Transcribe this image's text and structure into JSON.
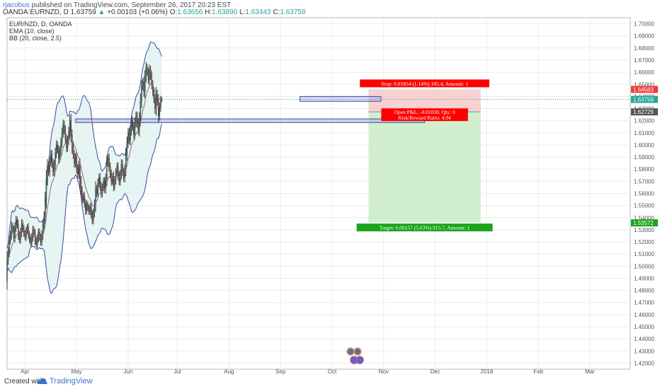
{
  "header": {
    "author": "rjacobus",
    "published_text": "published on TradingView.com, September 26, 2017 20:23 EST",
    "symbol": "OANDA:EURNZD, D",
    "last_price": "1.63759",
    "change": "+0.00103 (+0.06%)",
    "ohlc": {
      "o_label": "O:",
      "o": "1.63656",
      "h_label": "H:",
      "h": "1.63890",
      "l_label": "L:",
      "l": "1.63443",
      "c_label": "C:",
      "c": "1.63759"
    }
  },
  "legend": {
    "title": "EUR/NZD, D, OANDA",
    "indicators": [
      "EMA (10, close)",
      "BB (20, close, 2.5)"
    ]
  },
  "position_labels": {
    "stop": "Stop: 0.01854 (1.14%) 185.4, Amount: 1",
    "open_pnl": "Open P&L: -0.01030, Qty: 0",
    "risk_reward": "Risk/Reward Ratio: 4.94",
    "target": "Target: 0.09157 (5.63%) 915.7, Amount: 1"
  },
  "price_tags": {
    "stop": "1.64583",
    "current": "1.63759",
    "entry": "1.62729",
    "target": "1.53572"
  },
  "footer": {
    "created_with": "Created with",
    "brand": "TradingView"
  },
  "colors": {
    "bull": "#26a69a",
    "bear": "#ef5350",
    "stop_zone": "#f8c9c9",
    "target_zone": "#c9ecc7",
    "bb_line": "#3d4a9e",
    "bb_fill": "#e0f1f1",
    "ema": "#8d6e63",
    "label_red": "#ff0000",
    "label_green": "#1ca31c"
  },
  "chart_data": {
    "type": "candlestick",
    "title": "EUR/NZD, D, OANDA",
    "y_ticks": [
      1.42,
      1.43,
      1.44,
      1.45,
      1.46,
      1.47,
      1.48,
      1.49,
      1.5,
      1.51,
      1.52,
      1.53,
      1.54,
      1.55,
      1.56,
      1.57,
      1.58,
      1.59,
      1.6,
      1.61,
      1.62,
      1.63,
      1.64,
      1.65,
      1.66,
      1.67,
      1.68,
      1.69,
      1.7
    ],
    "y_tick_labels": [
      "1.42000",
      "1.43000",
      "1.44000",
      "1.45000",
      "1.46000",
      "1.47000",
      "1.48000",
      "1.49000",
      "1.50000",
      "1.51000",
      "1.52000",
      "1.53000",
      "1.54000",
      "1.55000",
      "1.56000",
      "1.57000",
      "1.58000",
      "1.59000",
      "1.60000",
      "1.61000",
      "1.62000",
      "1.63000",
      "1.64000",
      "1.65000",
      "1.66000",
      "1.67000",
      "1.68000",
      "1.69000",
      "1.70000"
    ],
    "ylim": [
      1.415,
      1.705
    ],
    "x_labels": [
      "Apr",
      "May",
      "Jun",
      "Jul",
      "Aug",
      "Sep",
      "Oct",
      "Nov",
      "Dec",
      "2018",
      "Feb",
      "Mar"
    ],
    "x_label_index": [
      16,
      62,
      108,
      152,
      198,
      244,
      290,
      336,
      382,
      428,
      474,
      520
    ],
    "x_range": [
      0,
      556
    ],
    "grid": true,
    "ema_period": 10,
    "bb": {
      "period": 20,
      "mult": 2.5
    },
    "first_close": 1.488,
    "closes": [
      1.505,
      1.512,
      1.521,
      1.526,
      1.533,
      1.53,
      1.524,
      1.532,
      1.538,
      1.534,
      1.526,
      1.522,
      1.528,
      1.535,
      1.531,
      1.527,
      1.524,
      1.529,
      1.532,
      1.526,
      1.522,
      1.519,
      1.524,
      1.53,
      1.527,
      1.521,
      1.518,
      1.523,
      1.528,
      1.524,
      1.52,
      1.526,
      1.534,
      1.541,
      1.555,
      1.572,
      1.583,
      1.578,
      1.586,
      1.592,
      1.585,
      1.578,
      1.584,
      1.593,
      1.6,
      1.596,
      1.589,
      1.595,
      1.602,
      1.61,
      1.617,
      1.612,
      1.605,
      1.598,
      1.604,
      1.611,
      1.62,
      1.608,
      1.598,
      1.592,
      1.585,
      1.59,
      1.581,
      1.576,
      1.583,
      1.57,
      1.562,
      1.555,
      1.558,
      1.552,
      1.546,
      1.551,
      1.548,
      1.545,
      1.549,
      1.543,
      1.538,
      1.544,
      1.551,
      1.564,
      1.56,
      1.568,
      1.573,
      1.566,
      1.56,
      1.565,
      1.57,
      1.564,
      1.572,
      1.585,
      1.589,
      1.582,
      1.576,
      1.57,
      1.574,
      1.566,
      1.571,
      1.577,
      1.582,
      1.575,
      1.57,
      1.576,
      1.584,
      1.578,
      1.573,
      1.58,
      1.592,
      1.602,
      1.61,
      1.604,
      1.612,
      1.62,
      1.615,
      1.609,
      1.618,
      1.624,
      1.618,
      1.612,
      1.622,
      1.636,
      1.648,
      1.652,
      1.644,
      1.656,
      1.664,
      1.66,
      1.654,
      1.662,
      1.657,
      1.65,
      1.644,
      1.638,
      1.63,
      1.642,
      1.636,
      1.624,
      1.631,
      1.637,
      1.638
    ],
    "position": {
      "stop": 1.64583,
      "entry": 1.62729,
      "target": 1.53572,
      "current": 1.63759,
      "start_index": 0.58,
      "end_index": 0.76
    },
    "horizontal_zones": [
      {
        "from": 1.6185,
        "to": 1.6215,
        "x_start": 0.11,
        "x_end": 0.67
      },
      {
        "from": 1.636,
        "to": 1.64,
        "x_start": 0.47,
        "x_end": 0.6
      }
    ]
  }
}
